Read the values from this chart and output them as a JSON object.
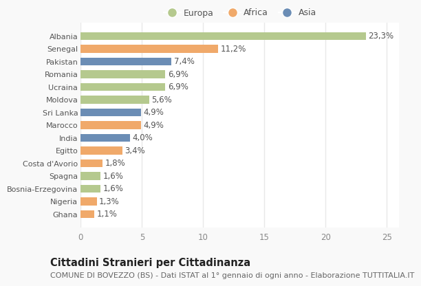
{
  "countries": [
    "Albania",
    "Senegal",
    "Pakistan",
    "Romania",
    "Ucraina",
    "Moldova",
    "Sri Lanka",
    "Marocco",
    "India",
    "Egitto",
    "Costa d'Avorio",
    "Spagna",
    "Bosnia-Erzegovina",
    "Nigeria",
    "Ghana"
  ],
  "values": [
    23.3,
    11.2,
    7.4,
    6.9,
    6.9,
    5.6,
    4.9,
    4.9,
    4.0,
    3.4,
    1.8,
    1.6,
    1.6,
    1.3,
    1.1
  ],
  "labels": [
    "23,3%",
    "11,2%",
    "7,4%",
    "6,9%",
    "6,9%",
    "5,6%",
    "4,9%",
    "4,9%",
    "4,0%",
    "3,4%",
    "1,8%",
    "1,6%",
    "1,6%",
    "1,3%",
    "1,1%"
  ],
  "regions": [
    "Europa",
    "Africa",
    "Asia",
    "Europa",
    "Europa",
    "Europa",
    "Asia",
    "Africa",
    "Asia",
    "Africa",
    "Africa",
    "Europa",
    "Europa",
    "Africa",
    "Africa"
  ],
  "colors": {
    "Europa": "#b5c98e",
    "Africa": "#f0a96a",
    "Asia": "#6b8db5"
  },
  "xlim": [
    0,
    26
  ],
  "xticks": [
    0,
    5,
    10,
    15,
    20,
    25
  ],
  "title": "Cittadini Stranieri per Cittadinanza",
  "subtitle": "COMUNE DI BOVEZZO (BS) - Dati ISTAT al 1° gennaio di ogni anno - Elaborazione TUTTITALIA.IT",
  "bg_color": "#f9f9f9",
  "plot_bg_color": "#ffffff",
  "grid_color": "#e8e8e8",
  "bar_height": 0.62,
  "label_fontsize": 8.5,
  "tick_fontsize": 8.5,
  "ytick_fontsize": 8.0,
  "title_fontsize": 10.5,
  "subtitle_fontsize": 8.0,
  "legend_marker_size": 10
}
